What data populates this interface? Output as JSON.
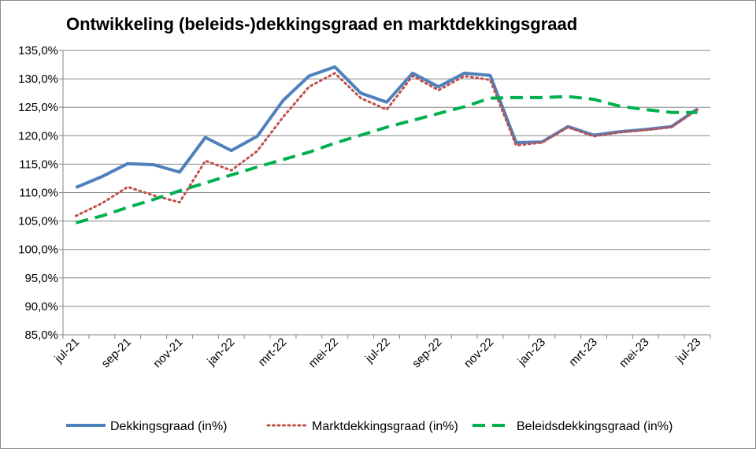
{
  "chart_data": {
    "type": "line",
    "title": "Ontwikkeling (beleids-)dekkingsgraad en marktdekkingsgraad",
    "xlabel": "",
    "ylabel": "",
    "ylim": [
      85,
      135
    ],
    "grid": true,
    "legend_position": "bottom",
    "y_ticks": [
      "85,0%",
      "90,0%",
      "95,0%",
      "100,0%",
      "105,0%",
      "110,0%",
      "115,0%",
      "120,0%",
      "125,0%",
      "130,0%",
      "135,0%"
    ],
    "x_tick_labels": [
      "jul-21",
      "sep-21",
      "nov-21",
      "jan-22",
      "mrt-22",
      "mei-22",
      "jul-22",
      "sep-22",
      "nov-22",
      "jan-23",
      "mrt-23",
      "mei-23",
      "jul-23"
    ],
    "categories": [
      "jul-21",
      "aug-21",
      "sep-21",
      "okt-21",
      "nov-21",
      "dec-21",
      "jan-22",
      "feb-22",
      "mrt-22",
      "apr-22",
      "mei-22",
      "jun-22",
      "jul-22",
      "aug-22",
      "sep-22",
      "okt-22",
      "nov-22",
      "dec-22",
      "jan-23",
      "feb-23",
      "mrt-23",
      "apr-23",
      "mei-23",
      "jun-23",
      "jul-23"
    ],
    "series": [
      {
        "name": "Dekkingsgraad (in%)",
        "color": "#4f81bd",
        "style": "solid",
        "values": [
          110.9,
          112.8,
          115.1,
          114.9,
          113.6,
          119.7,
          117.4,
          119.9,
          126.2,
          130.5,
          132.1,
          127.5,
          125.9,
          131.0,
          128.6,
          131.0,
          130.6,
          118.8,
          118.9,
          121.6,
          120.1,
          120.7,
          121.1,
          121.6,
          124.7
        ]
      },
      {
        "name": "Marktdekkingsgraad (in%)",
        "color": "#c0504d",
        "style": "dotted",
        "values": [
          105.9,
          108.1,
          111.0,
          109.5,
          108.3,
          115.6,
          113.9,
          117.3,
          123.3,
          128.6,
          131.0,
          126.6,
          124.6,
          130.5,
          128.0,
          130.5,
          129.8,
          118.3,
          118.8,
          121.5,
          119.9,
          120.6,
          121.0,
          121.5,
          124.6
        ]
      },
      {
        "name": "Beleidsdekkingsgraad (in%)",
        "color": "#00b050",
        "style": "dashed",
        "values": [
          104.7,
          105.9,
          107.4,
          108.8,
          110.3,
          111.7,
          113.1,
          114.5,
          115.8,
          117.1,
          118.7,
          120.1,
          121.5,
          122.7,
          123.9,
          125.1,
          126.6,
          126.7,
          126.7,
          126.9,
          126.4,
          125.2,
          124.6,
          124.1,
          124.1
        ]
      }
    ]
  }
}
